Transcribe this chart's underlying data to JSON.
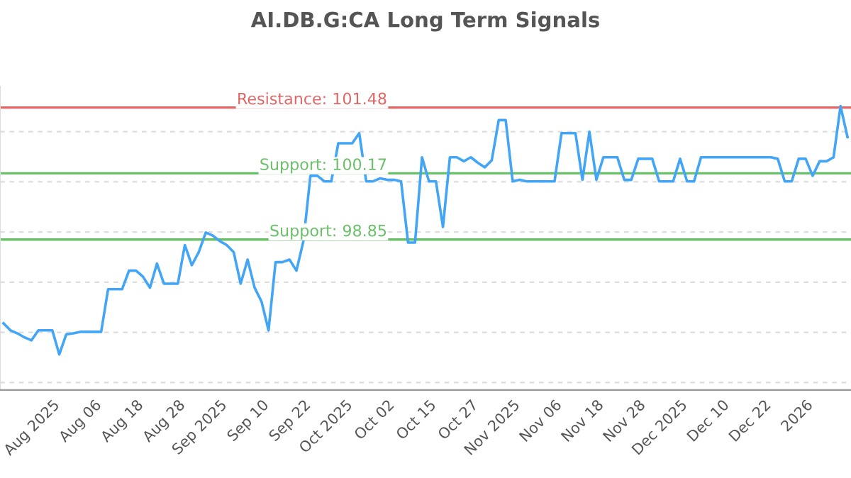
{
  "chart_data": {
    "type": "line",
    "title": "AI.DB.G:CA Long Term Signals",
    "categories": [
      null,
      null,
      null,
      null,
      null,
      null,
      null,
      "Aug 2025",
      null,
      null,
      null,
      null,
      null,
      "Aug 06",
      null,
      null,
      null,
      null,
      null,
      "Aug 18",
      null,
      null,
      null,
      null,
      null,
      "Aug 28",
      null,
      null,
      null,
      null,
      null,
      "Sep 2025",
      null,
      null,
      null,
      null,
      null,
      "Sep 10",
      null,
      null,
      null,
      null,
      null,
      "Sep 22",
      null,
      null,
      null,
      null,
      null,
      "Oct 2025",
      null,
      null,
      null,
      null,
      null,
      "Oct 02",
      null,
      null,
      null,
      null,
      null,
      "Oct 15",
      null,
      null,
      null,
      null,
      null,
      "Oct 27",
      null,
      null,
      null,
      null,
      null,
      "Nov 2025",
      null,
      null,
      null,
      null,
      null,
      "Nov 06",
      null,
      null,
      null,
      null,
      null,
      "Nov 18",
      null,
      null,
      null,
      null,
      null,
      "Nov 28",
      null,
      null,
      null,
      null,
      null,
      "Dec 2025",
      null,
      null,
      null,
      null,
      null,
      "Dec 10",
      null,
      null,
      null,
      null,
      null,
      "Dec 22",
      null,
      null,
      null,
      null,
      null,
      "2026",
      null,
      null,
      null,
      null,
      null,
      null
    ],
    "series": [
      {
        "color": "#42a5f5",
        "values": [
          97.18,
          97.04,
          96.98,
          96.9,
          96.84,
          97.04,
          97.04,
          97.04,
          96.56,
          96.96,
          96.98,
          97.01,
          97.01,
          97.01,
          97.01,
          97.86,
          97.86,
          97.86,
          98.23,
          98.23,
          98.11,
          97.89,
          98.37,
          97.97,
          97.97,
          97.97,
          98.74,
          98.34,
          98.6,
          98.99,
          98.93,
          98.82,
          98.74,
          98.6,
          97.97,
          98.45,
          97.89,
          97.61,
          97.04,
          98.4,
          98.4,
          98.45,
          98.23,
          98.82,
          100.12,
          100.12,
          100.01,
          100.01,
          100.77,
          100.77,
          100.77,
          100.97,
          100.01,
          100.01,
          100.07,
          100.04,
          100.04,
          100.01,
          98.79,
          98.79,
          100.49,
          100.01,
          100.01,
          99.1,
          100.49,
          100.49,
          100.41,
          100.49,
          100.38,
          100.29,
          100.43,
          101.23,
          101.23,
          100.01,
          100.04,
          100.01,
          100.01,
          100.01,
          100.01,
          100.01,
          100.97,
          100.97,
          100.97,
          100.04,
          101.0,
          100.04,
          100.49,
          100.49,
          100.49,
          100.04,
          100.04,
          100.46,
          100.46,
          100.46,
          100.01,
          100.01,
          100.01,
          100.46,
          100.01,
          100.01,
          100.49,
          100.49,
          100.49,
          100.49,
          100.49,
          100.49,
          100.49,
          100.49,
          100.49,
          100.49,
          100.49,
          100.46,
          100.01,
          100.01,
          100.46,
          100.46,
          100.12,
          100.41,
          100.41,
          100.49,
          101.51,
          100.89
        ]
      }
    ],
    "ylim": [
      95.85,
      101.9
    ],
    "yticks": [
      {
        "value": 96,
        "label": null
      },
      {
        "value": 97,
        "label": null
      },
      {
        "value": 98,
        "label": null
      },
      {
        "value": 99,
        "label": null
      },
      {
        "value": 100,
        "label": null
      },
      {
        "value": 101,
        "label": null
      }
    ],
    "tick_labels": "x",
    "grid": "y",
    "ref_lines": [
      {
        "axis": "y",
        "value": 101.48,
        "label": "Resistance: 101.48",
        "color": "#e06666"
      },
      {
        "axis": "y",
        "value": 100.17,
        "label": "Support: 100.17",
        "color": "#6abf69"
      },
      {
        "axis": "y",
        "value": 98.85,
        "label": "Support: 98.85",
        "color": "#6abf69"
      }
    ]
  }
}
